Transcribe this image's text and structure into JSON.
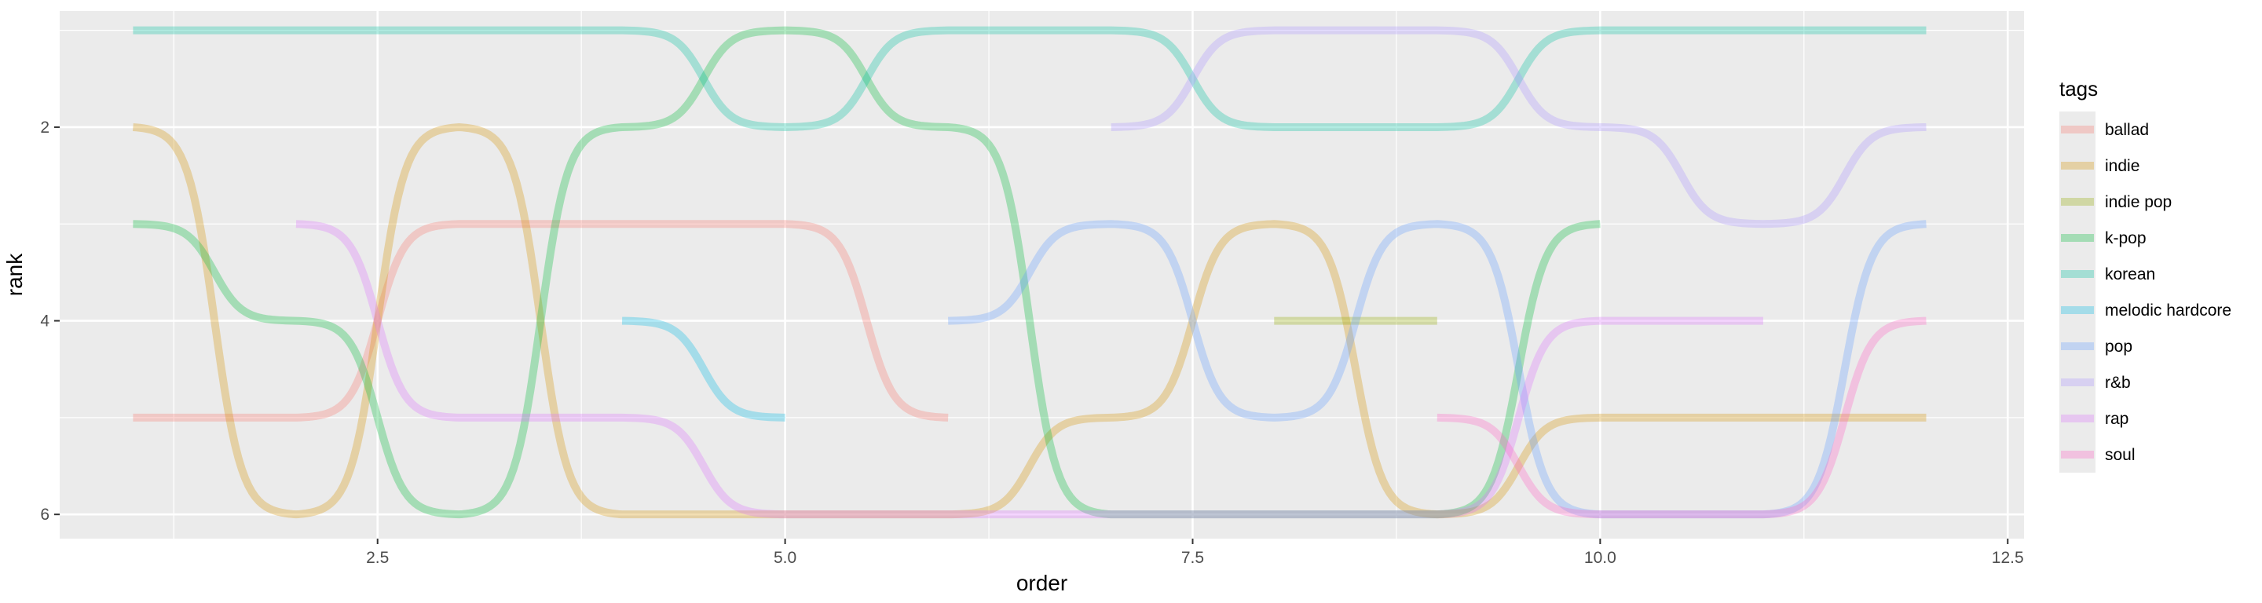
{
  "chart_data": {
    "type": "line",
    "subtype": "bump",
    "xlabel": "order",
    "ylabel": "rank",
    "legend_title": "tags",
    "legend_position": "right",
    "x_ticks": [
      2.5,
      5.0,
      7.5,
      10.0,
      12.5
    ],
    "x_tick_labels": [
      "2.5",
      "5.0",
      "7.5",
      "10.0",
      "12.5"
    ],
    "y_ticks": [
      2,
      4,
      6
    ],
    "y_tick_labels": [
      "2",
      "4",
      "6"
    ],
    "xlim": [
      0.55,
      12.6
    ],
    "ylim": [
      6.25,
      0.8
    ],
    "y_reversed": true,
    "grid": true,
    "line_alpha": 0.3,
    "series": [
      {
        "name": "ballad",
        "color": "#F8766D",
        "points": [
          [
            1,
            5
          ],
          [
            2,
            5
          ],
          [
            3,
            3
          ],
          [
            4,
            3
          ],
          [
            5,
            3
          ],
          [
            6,
            5
          ]
        ]
      },
      {
        "name": "indie",
        "color": "#D39200",
        "points": [
          [
            1,
            2
          ],
          [
            2,
            6
          ],
          [
            3,
            2
          ],
          [
            4,
            6
          ],
          [
            5,
            6
          ],
          [
            6,
            6
          ],
          [
            7,
            5
          ],
          [
            8,
            3
          ],
          [
            9,
            6
          ],
          [
            10,
            5
          ],
          [
            11,
            5
          ],
          [
            12,
            5
          ]
        ]
      },
      {
        "name": "indie pop",
        "color": "#93AA00",
        "points": [
          [
            8,
            4
          ],
          [
            9,
            4
          ]
        ]
      },
      {
        "name": "k-pop",
        "color": "#00BA38",
        "points": [
          [
            1,
            3
          ],
          [
            2,
            4
          ],
          [
            3,
            6
          ],
          [
            4,
            2
          ],
          [
            5,
            1
          ],
          [
            6,
            2
          ],
          [
            7,
            6
          ],
          [
            8,
            6
          ],
          [
            9,
            6
          ],
          [
            10,
            3
          ]
        ]
      },
      {
        "name": "korean",
        "color": "#00C19F",
        "points": [
          [
            1,
            1
          ],
          [
            2,
            1
          ],
          [
            3,
            1
          ],
          [
            4,
            1
          ],
          [
            5,
            2
          ],
          [
            6,
            1
          ],
          [
            7,
            1
          ],
          [
            8,
            2
          ],
          [
            9,
            2
          ],
          [
            10,
            1
          ],
          [
            11,
            1
          ],
          [
            12,
            1
          ]
        ]
      },
      {
        "name": "melodic hardcore",
        "color": "#00B9E3",
        "points": [
          [
            4,
            4
          ],
          [
            5,
            5
          ]
        ]
      },
      {
        "name": "pop",
        "color": "#619CFF",
        "points": [
          [
            6,
            4
          ],
          [
            7,
            3
          ],
          [
            8,
            5
          ],
          [
            9,
            3
          ],
          [
            10,
            6
          ],
          [
            11,
            6
          ],
          [
            12,
            3
          ]
        ]
      },
      {
        "name": "r&b",
        "color": "#A891FF",
        "points": [
          [
            7,
            2
          ],
          [
            8,
            1
          ],
          [
            9,
            1
          ],
          [
            10,
            2
          ],
          [
            11,
            3
          ],
          [
            12,
            2
          ]
        ]
      },
      {
        "name": "rap",
        "color": "#DB72FB",
        "points": [
          [
            2,
            3
          ],
          [
            3,
            5
          ],
          [
            4,
            5
          ],
          [
            5,
            6
          ],
          [
            6,
            6
          ],
          [
            7,
            6
          ],
          [
            8,
            6
          ],
          [
            9,
            6
          ],
          [
            10,
            4
          ],
          [
            11,
            4
          ]
        ]
      },
      {
        "name": "soul",
        "color": "#FF61C3",
        "points": [
          [
            9,
            5
          ],
          [
            10,
            6
          ],
          [
            11,
            6
          ],
          [
            12,
            4
          ]
        ]
      }
    ]
  }
}
